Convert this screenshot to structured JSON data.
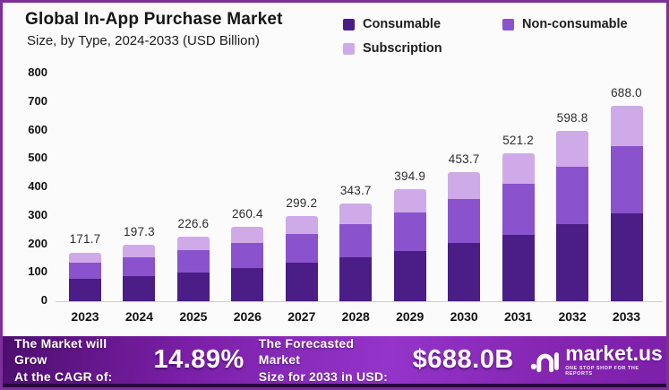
{
  "header": {
    "title": "Global In-App Purchase Market",
    "subtitle": "Size, by Type, 2024-2033 (USD Billion)"
  },
  "legend": {
    "items": [
      {
        "label": "Consumable",
        "color": "#4a1d87"
      },
      {
        "label": "Non-consumable",
        "color": "#8a52cc"
      },
      {
        "label": "Subscription",
        "color": "#cfaae8"
      }
    ]
  },
  "chart_data": {
    "type": "bar",
    "stacked": true,
    "title": "Global In-App Purchase Market Size, by Type, 2024-2033 (USD Billion)",
    "categories": [
      "2023",
      "2024",
      "2025",
      "2026",
      "2027",
      "2028",
      "2029",
      "2030",
      "2031",
      "2032",
      "2033"
    ],
    "series": [
      {
        "name": "Consumable",
        "color": "#4a1d87",
        "values": [
          77.3,
          88.8,
          102.0,
          117.2,
          134.6,
          154.7,
          177.7,
          204.2,
          234.5,
          269.5,
          309.6
        ]
      },
      {
        "name": "Non-consumable",
        "color": "#8a52cc",
        "values": [
          58.4,
          67.1,
          77.0,
          88.5,
          101.7,
          116.9,
          134.3,
          154.3,
          177.2,
          203.6,
          233.9
        ]
      },
      {
        "name": "Subscription",
        "color": "#cfaae8",
        "values": [
          36.0,
          41.4,
          47.6,
          54.7,
          62.9,
          72.1,
          82.9,
          95.2,
          109.5,
          125.7,
          144.5
        ]
      }
    ],
    "totals": [
      171.7,
      197.3,
      226.6,
      260.4,
      299.2,
      343.7,
      394.9,
      453.7,
      521.2,
      598.8,
      688.0
    ],
    "total_labels": [
      "171.7",
      "197.3",
      "226.6",
      "260.4",
      "299.2",
      "343.7",
      "394.9",
      "453.7",
      "521.2",
      "598.8",
      "688.0"
    ],
    "xlabel": "",
    "ylabel": "",
    "ylim": [
      0,
      800
    ],
    "yticks": [
      0,
      100,
      200,
      300,
      400,
      500,
      600,
      700,
      800
    ],
    "grid": false,
    "legend_position": "top-right"
  },
  "banner": {
    "cagr_label_line1": "The Market will Grow",
    "cagr_label_line2": "At the CAGR of:",
    "cagr_value": "14.89%",
    "forecast_label_line1": "The Forecasted Market",
    "forecast_label_line2": "Size for 2033 in USD:",
    "forecast_value": "$688.0B",
    "logo_text": "market.us",
    "logo_tagline": "ONE STOP SHOP FOR THE REPORTS"
  },
  "colors": {
    "page_border": "#7d2f9a",
    "background": "#fcfbfc",
    "banner_gradient_start": "#4d0e6e",
    "banner_gradient_mid": "#9434ca",
    "banner_bottom_strip": "#250a39",
    "axis_line": "#cfcfcf",
    "text": "#141414"
  }
}
